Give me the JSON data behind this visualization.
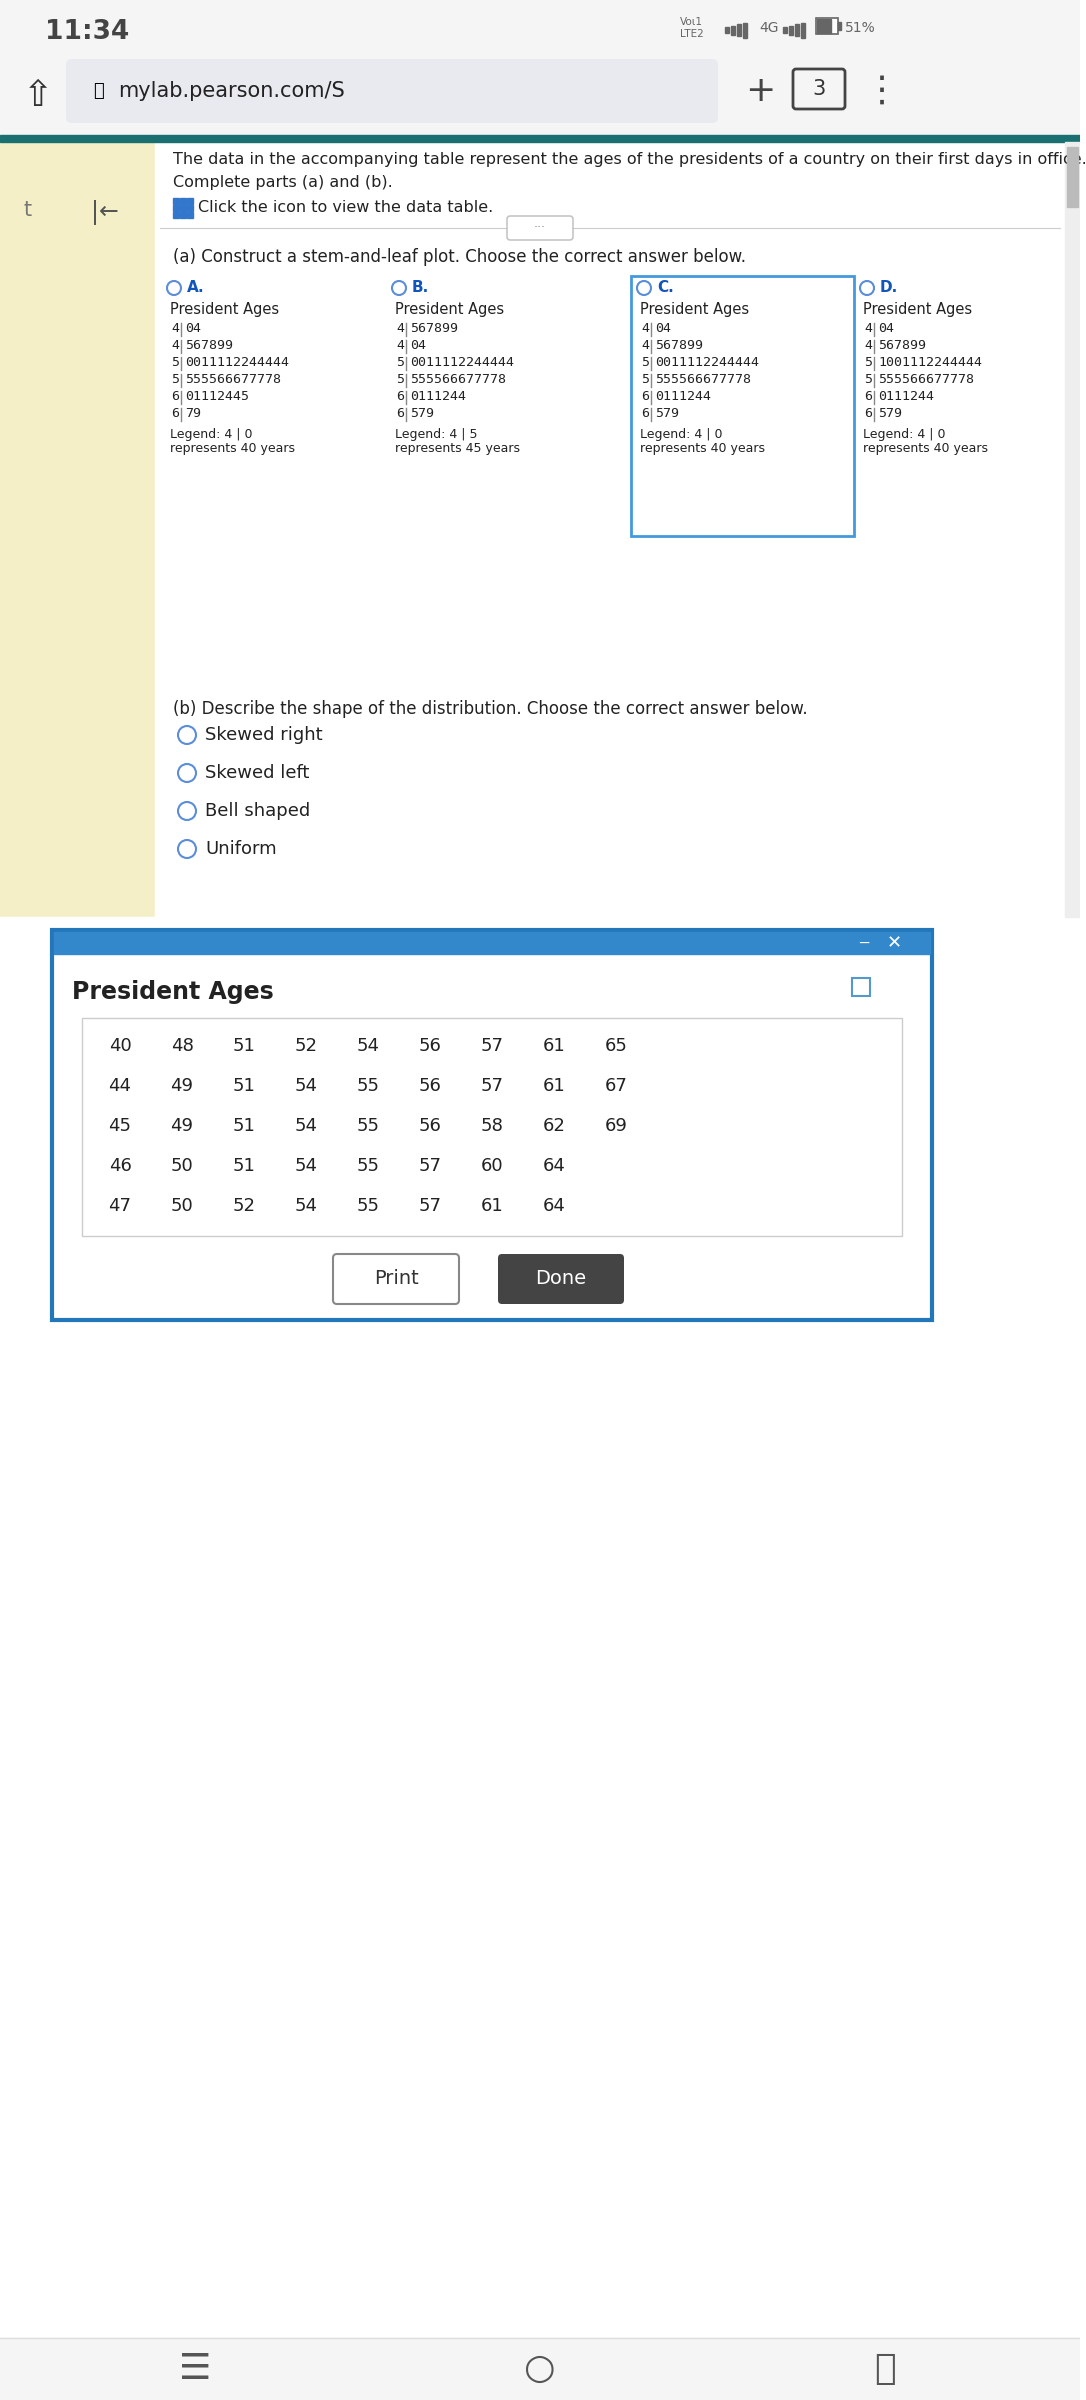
{
  "time": "11:34",
  "url": "mylab.pearson.com/S",
  "bg_color": "#ffffff",
  "status_bg": "#f5f5f5",
  "browser_bg": "#f5f5f5",
  "sidebar_color": "#f5efc8",
  "header_border_color": "#1a7070",
  "question_text_line1": "The data in the accompanying table represent the ages of the presidents of a country on their first days in office.",
  "question_text_line2": "Complete parts (a) and (b).",
  "icon_text": "Click the icon to view the data table.",
  "part_a_text": "(a) Construct a stem-and-leaf plot. Choose the correct answer below.",
  "option_A_title": "President Ages",
  "option_A_rows": [
    [
      "4",
      "04"
    ],
    [
      "4",
      "567899"
    ],
    [
      "5",
      "0011112244444"
    ],
    [
      "5",
      "555566677778"
    ],
    [
      "6",
      "01112445"
    ],
    [
      "6",
      "79"
    ]
  ],
  "option_A_legend1": "Legend: 4 | 0",
  "option_A_legend2": "represents 40 years",
  "option_B_title": "President Ages",
  "option_B_rows": [
    [
      "4",
      "567899"
    ],
    [
      "4",
      "04"
    ],
    [
      "5",
      "0011112244444"
    ],
    [
      "5",
      "555566677778"
    ],
    [
      "6",
      "0111244"
    ],
    [
      "6",
      "579"
    ]
  ],
  "option_B_legend1": "Legend: 4 | 5",
  "option_B_legend2": "represents 45 years",
  "option_C_title": "President Ages",
  "option_C_rows": [
    [
      "4",
      "04"
    ],
    [
      "4",
      "567899"
    ],
    [
      "5",
      "0011112244444"
    ],
    [
      "5",
      "555566677778"
    ],
    [
      "6",
      "0111244"
    ],
    [
      "6",
      "579"
    ]
  ],
  "option_C_legend1": "Legend: 4 | 0",
  "option_C_legend2": "represents 40 years",
  "option_D_title": "President Ages",
  "option_D_rows": [
    [
      "4",
      "04"
    ],
    [
      "4",
      "567899"
    ],
    [
      "5",
      "1001112244444"
    ],
    [
      "5",
      "555566677778"
    ],
    [
      "6",
      "0111244"
    ],
    [
      "6",
      "579"
    ]
  ],
  "option_D_legend1": "Legend: 4 | 0",
  "option_D_legend2": "represents 40 years",
  "part_b_text": "(b) Describe the shape of the distribution. Choose the correct answer below.",
  "part_b_options": [
    "Skewed right",
    "Skewed left",
    "Bell shaped",
    "Uniform"
  ],
  "dialog_title": "President Ages",
  "dialog_data": [
    [
      40,
      48,
      51,
      52,
      54,
      56,
      57,
      61,
      65
    ],
    [
      44,
      49,
      51,
      54,
      55,
      56,
      57,
      61,
      67
    ],
    [
      45,
      49,
      51,
      54,
      55,
      56,
      58,
      62,
      69
    ],
    [
      46,
      50,
      51,
      54,
      55,
      57,
      60,
      64,
      null
    ],
    [
      47,
      50,
      52,
      54,
      55,
      57,
      61,
      64,
      null
    ]
  ],
  "button_print": "Print",
  "button_done": "Done",
  "radio_color": "#5b8dd9",
  "text_color": "#222222",
  "option_label_color": "#1155bb",
  "selected_box_color": "#4499dd",
  "dialog_border_color": "#2277bb"
}
